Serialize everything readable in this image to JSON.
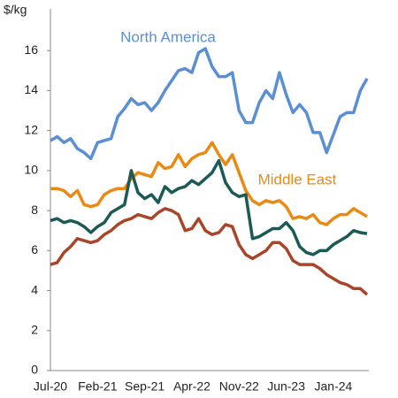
{
  "chart_data": {
    "type": "line",
    "y_label": "$/kg",
    "categories": [
      "Jul-20",
      null,
      null,
      null,
      null,
      null,
      null,
      "Feb-21",
      null,
      null,
      null,
      null,
      null,
      null,
      "Sep-21",
      null,
      null,
      null,
      null,
      null,
      null,
      "Apr-22",
      null,
      null,
      null,
      null,
      null,
      null,
      "Nov-22",
      null,
      null,
      null,
      null,
      null,
      null,
      "Jun-23",
      null,
      null,
      null,
      null,
      null,
      null,
      "Jan-24",
      null,
      null,
      null,
      null,
      null
    ],
    "ylim": [
      0,
      18
    ],
    "yticks": [
      0,
      2,
      4,
      6,
      8,
      10,
      12,
      14,
      16
    ],
    "grid": false,
    "series": [
      {
        "name": "North America",
        "color": "#5b8fd4",
        "values": [
          11.5,
          11.7,
          11.4,
          11.6,
          11.1,
          10.9,
          10.6,
          11.4,
          11.5,
          11.6,
          12.7,
          13.1,
          13.6,
          13.3,
          13.4,
          13.0,
          13.4,
          14.0,
          14.5,
          15.0,
          15.1,
          14.9,
          15.9,
          16.1,
          15.2,
          14.7,
          14.7,
          14.9,
          13.0,
          12.4,
          12.4,
          13.4,
          14.0,
          13.6,
          14.9,
          13.8,
          12.9,
          13.3,
          12.9,
          11.9,
          11.9,
          10.9,
          11.8,
          12.7,
          12.9,
          12.9,
          14.0,
          14.6
        ]
      },
      {
        "name": "Middle East",
        "color": "#e98a14",
        "values": [
          9.1,
          9.1,
          9.0,
          8.7,
          9.0,
          8.3,
          8.2,
          8.3,
          8.8,
          9.0,
          9.1,
          9.1,
          9.6,
          9.9,
          9.8,
          9.7,
          10.4,
          10.1,
          10.2,
          10.8,
          10.2,
          10.6,
          10.8,
          10.9,
          11.4,
          10.8,
          10.3,
          10.8,
          9.9,
          9.0,
          8.5,
          8.3,
          8.5,
          8.4,
          8.5,
          8.2,
          7.6,
          7.7,
          7.6,
          7.8,
          7.4,
          7.3,
          7.6,
          7.8,
          7.8,
          8.1,
          7.9,
          7.7
        ]
      },
      {
        "color": "#1c5a55",
        "values": [
          7.5,
          7.6,
          7.4,
          7.5,
          7.4,
          7.2,
          6.9,
          7.2,
          7.4,
          7.9,
          8.1,
          8.3,
          10.0,
          8.9,
          8.6,
          8.8,
          8.4,
          9.2,
          8.9,
          9.1,
          9.2,
          9.5,
          9.3,
          9.6,
          9.9,
          10.5,
          9.4,
          8.9,
          8.7,
          8.8,
          6.6,
          6.7,
          6.9,
          7.1,
          7.1,
          7.4,
          7.0,
          6.2,
          5.9,
          5.8,
          6.0,
          6.0,
          6.3,
          6.5,
          6.7,
          7.0,
          6.9,
          6.85
        ]
      },
      {
        "color": "#a9452a",
        "values": [
          5.3,
          5.4,
          5.9,
          6.2,
          6.6,
          6.5,
          6.4,
          6.5,
          6.8,
          7.0,
          7.3,
          7.5,
          7.6,
          7.8,
          7.7,
          7.6,
          7.9,
          8.1,
          8.0,
          7.8,
          7.0,
          7.1,
          7.6,
          7.0,
          6.8,
          6.9,
          7.3,
          7.2,
          6.3,
          5.8,
          5.6,
          5.8,
          6.0,
          6.4,
          6.4,
          6.1,
          5.5,
          5.3,
          5.3,
          5.3,
          5.1,
          4.8,
          4.6,
          4.4,
          4.3,
          4.1,
          4.1,
          3.8
        ]
      }
    ]
  }
}
